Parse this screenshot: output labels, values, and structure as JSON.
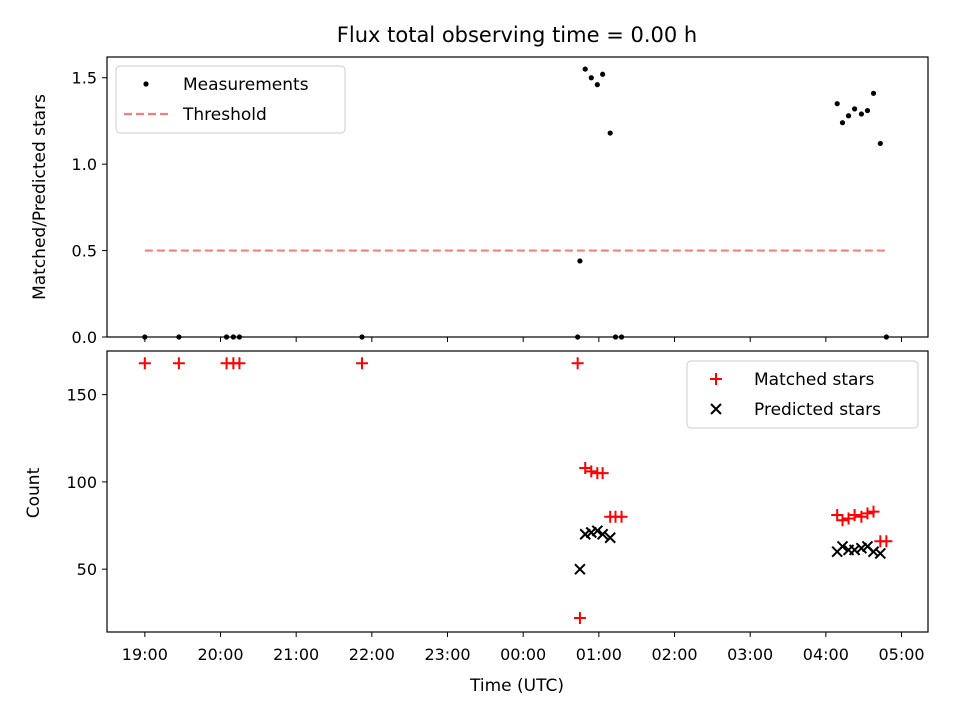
{
  "chart_data": [
    {
      "type": "scatter",
      "title": "Flux total observing time = 0.00 h",
      "xlabel": "",
      "ylabel": "Matched/Predicted stars",
      "xlim": [
        18.5,
        29.35
      ],
      "ylim": [
        0,
        1.62
      ],
      "yticks": [
        0.0,
        0.5,
        1.0,
        1.5
      ],
      "ytick_labels": [
        "0.0",
        "0.5",
        "1.0",
        "1.5"
      ],
      "legend_position": "top-left",
      "series": [
        {
          "name": "Measurements",
          "marker": "dot",
          "color": "#000000",
          "x": [
            19.0,
            19.45,
            20.08,
            20.17,
            20.25,
            21.87,
            24.72,
            24.75,
            24.82,
            24.9,
            24.98,
            25.05,
            25.15,
            25.22,
            25.3,
            28.15,
            28.22,
            28.3,
            28.38,
            28.47,
            28.55,
            28.63,
            28.72,
            28.8
          ],
          "y": [
            0,
            0,
            0,
            0,
            0,
            0,
            0,
            0.44,
            1.55,
            1.5,
            1.46,
            1.52,
            1.18,
            0,
            0,
            1.35,
            1.24,
            1.28,
            1.32,
            1.29,
            1.31,
            1.41,
            1.12,
            0
          ]
        },
        {
          "name": "Threshold",
          "style": "dashed",
          "color": "#f08080",
          "x": [
            19.0,
            28.8
          ],
          "y": [
            0.5,
            0.5
          ]
        }
      ]
    },
    {
      "type": "scatter",
      "title": "",
      "xlabel": "Time (UTC)",
      "ylabel": "Count",
      "xlim": [
        18.5,
        29.35
      ],
      "ylim": [
        14,
        175
      ],
      "yticks": [
        50,
        100,
        150
      ],
      "ytick_labels": [
        "50",
        "100",
        "150"
      ],
      "xticks": [
        19,
        20,
        21,
        22,
        23,
        24,
        25,
        26,
        27,
        28,
        29
      ],
      "xtick_labels": [
        "19:00",
        "20:00",
        "21:00",
        "22:00",
        "23:00",
        "00:00",
        "01:00",
        "02:00",
        "03:00",
        "04:00",
        "05:00"
      ],
      "legend_position": "top-right",
      "series": [
        {
          "name": "Matched stars",
          "marker": "plus",
          "color": "#ff0000",
          "x": [
            19.0,
            19.45,
            20.08,
            20.17,
            20.25,
            21.87,
            24.72,
            24.75,
            24.82,
            24.9,
            24.98,
            25.05,
            25.15,
            25.22,
            25.3,
            28.15,
            28.22,
            28.3,
            28.38,
            28.47,
            28.55,
            28.63,
            28.72,
            28.8
          ],
          "y": [
            168,
            168,
            168,
            168,
            168,
            168,
            168,
            22,
            108,
            106,
            105,
            105,
            80,
            80,
            80,
            81,
            78,
            79,
            81,
            80,
            82,
            83,
            66,
            66
          ]
        },
        {
          "name": "Predicted stars",
          "marker": "x",
          "color": "#000000",
          "x": [
            24.75,
            24.82,
            24.9,
            24.98,
            25.05,
            25.15,
            28.15,
            28.22,
            28.3,
            28.38,
            28.47,
            28.55,
            28.63,
            28.72
          ],
          "y": [
            50,
            70,
            71,
            72,
            70,
            68,
            60,
            63,
            61,
            61,
            62,
            63,
            60,
            59
          ]
        }
      ]
    }
  ]
}
